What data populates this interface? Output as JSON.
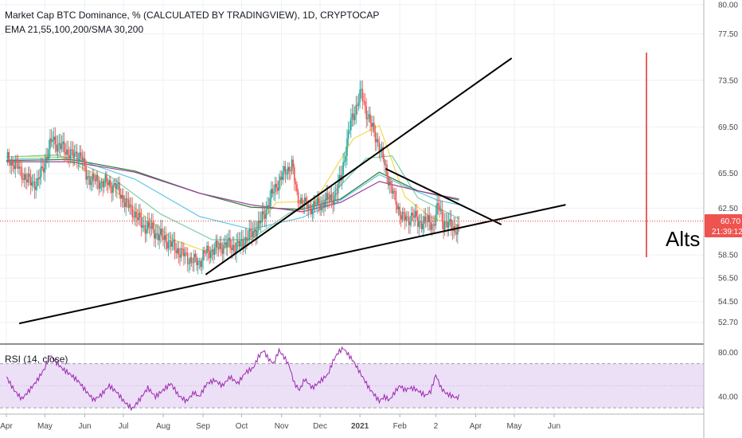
{
  "header": {
    "title": "Market Cap BTC Dominance, % (CALCULATED BY TRADINGVIEW), 1D, CRYPTOCAP",
    "indicators": "EMA 21,55,100,200/SMA 30,200"
  },
  "rsi_pane": {
    "label": "RSI (14, close)"
  },
  "price_badge": {
    "value": "60.70",
    "countdown": "21:39:12"
  },
  "annotation": {
    "text": "Alts l"
  },
  "chart_data": {
    "type": "candlestick",
    "price_axis": {
      "range": [
        50.9,
        80.4
      ],
      "ticks": [
        "80.00",
        "77.50",
        "73.50",
        "69.50",
        "65.50",
        "62.50",
        "60.70",
        "58.50",
        "56.50",
        "54.50",
        "52.70"
      ]
    },
    "rsi_axis": {
      "range": [
        25,
        87
      ],
      "ticks": [
        "80.00",
        "40.00"
      ],
      "band": [
        30,
        70
      ]
    },
    "time_axis": {
      "ticks": [
        {
          "label": "Apr",
          "d": 0
        },
        {
          "label": "May",
          "d": 30
        },
        {
          "label": "Jun",
          "d": 61
        },
        {
          "label": "Jul",
          "d": 91
        },
        {
          "label": "Aug",
          "d": 122
        },
        {
          "label": "Sep",
          "d": 153
        },
        {
          "label": "Oct",
          "d": 183
        },
        {
          "label": "Nov",
          "d": 214
        },
        {
          "label": "Dec",
          "d": 244
        },
        {
          "label": "2021",
          "d": 275
        },
        {
          "label": "Feb",
          "d": 306
        },
        {
          "label": "2",
          "d": 334
        },
        {
          "label": "Apr",
          "d": 365
        },
        {
          "label": "May",
          "d": 395
        },
        {
          "label": "Jun",
          "d": 426
        }
      ]
    },
    "last_price": 60.7,
    "close_series": [
      [
        0,
        66.8
      ],
      [
        8,
        66.2
      ],
      [
        16,
        64.9
      ],
      [
        24,
        64.6
      ],
      [
        30,
        66.5
      ],
      [
        36,
        68.5
      ],
      [
        40,
        67.9
      ],
      [
        46,
        67.5
      ],
      [
        52,
        67.0
      ],
      [
        58,
        67.1
      ],
      [
        62,
        65.3
      ],
      [
        70,
        64.8
      ],
      [
        78,
        64.7
      ],
      [
        86,
        64.3
      ],
      [
        92,
        63.1
      ],
      [
        100,
        62.0
      ],
      [
        106,
        61.0
      ],
      [
        112,
        60.8
      ],
      [
        118,
        60.2
      ],
      [
        124,
        59.8
      ],
      [
        132,
        59.0
      ],
      [
        138,
        58.5
      ],
      [
        144,
        58.0
      ],
      [
        150,
        57.9
      ],
      [
        154,
        58.6
      ],
      [
        160,
        58.9
      ],
      [
        166,
        59.2
      ],
      [
        172,
        59.4
      ],
      [
        178,
        59.1
      ],
      [
        184,
        59.6
      ],
      [
        190,
        60.2
      ],
      [
        196,
        61.0
      ],
      [
        200,
        61.9
      ],
      [
        204,
        63.0
      ],
      [
        210,
        64.5
      ],
      [
        216,
        65.5
      ],
      [
        222,
        66.3
      ],
      [
        226,
        63.6
      ],
      [
        232,
        62.8
      ],
      [
        238,
        62.6
      ],
      [
        244,
        62.9
      ],
      [
        250,
        63.2
      ],
      [
        256,
        63.6
      ],
      [
        260,
        65.1
      ],
      [
        264,
        67.5
      ],
      [
        268,
        70.0
      ],
      [
        272,
        71.2
      ],
      [
        276,
        72.4
      ],
      [
        280,
        70.8
      ],
      [
        284,
        69.5
      ],
      [
        288,
        68.5
      ],
      [
        292,
        67.1
      ],
      [
        296,
        65.5
      ],
      [
        300,
        64.0
      ],
      [
        304,
        62.7
      ],
      [
        308,
        61.8
      ],
      [
        312,
        61.4
      ],
      [
        316,
        62.1
      ],
      [
        320,
        61.2
      ],
      [
        324,
        61.4
      ],
      [
        328,
        61.3
      ],
      [
        332,
        61.1
      ],
      [
        336,
        62.7
      ],
      [
        340,
        61.3
      ],
      [
        344,
        61.0
      ],
      [
        348,
        60.8
      ],
      [
        352,
        60.7
      ]
    ],
    "moving_averages": [
      {
        "name": "EMA 21",
        "color": "#f2d94a",
        "points": [
          [
            0,
            66.9
          ],
          [
            40,
            67.0
          ],
          [
            70,
            65.4
          ],
          [
            100,
            62.5
          ],
          [
            130,
            59.8
          ],
          [
            155,
            58.8
          ],
          [
            185,
            59.4
          ],
          [
            210,
            63.0
          ],
          [
            240,
            63.1
          ],
          [
            270,
            68.5
          ],
          [
            290,
            69.6
          ],
          [
            310,
            63.5
          ],
          [
            330,
            61.7
          ],
          [
            352,
            61.0
          ]
        ]
      },
      {
        "name": "EMA 55",
        "color": "#7dcfa8",
        "points": [
          [
            0,
            66.9
          ],
          [
            40,
            67.1
          ],
          [
            80,
            65.3
          ],
          [
            120,
            62.0
          ],
          [
            160,
            59.8
          ],
          [
            190,
            59.8
          ],
          [
            220,
            62.1
          ],
          [
            250,
            63.3
          ],
          [
            280,
            66.8
          ],
          [
            300,
            67.0
          ],
          [
            320,
            63.4
          ],
          [
            340,
            62.3
          ],
          [
            352,
            61.6
          ]
        ]
      },
      {
        "name": "EMA 100",
        "color": "#5ec8e5",
        "points": [
          [
            0,
            66.7
          ],
          [
            50,
            66.9
          ],
          [
            100,
            65.0
          ],
          [
            150,
            61.8
          ],
          [
            190,
            60.7
          ],
          [
            230,
            61.7
          ],
          [
            260,
            63.2
          ],
          [
            290,
            65.4
          ],
          [
            310,
            64.4
          ],
          [
            335,
            63.2
          ],
          [
            352,
            62.8
          ]
        ]
      },
      {
        "name": "EMA 200",
        "color": "#2e7d32",
        "points": [
          [
            0,
            66.6
          ],
          [
            50,
            66.7
          ],
          [
            100,
            65.7
          ],
          [
            150,
            63.8
          ],
          [
            190,
            62.6
          ],
          [
            230,
            62.4
          ],
          [
            260,
            63.3
          ],
          [
            290,
            65.6
          ],
          [
            320,
            64.0
          ],
          [
            352,
            63.2
          ]
        ]
      },
      {
        "name": "SMA 200",
        "color": "#9c3f9c",
        "points": [
          [
            0,
            66.5
          ],
          [
            50,
            66.5
          ],
          [
            100,
            65.6
          ],
          [
            150,
            63.8
          ],
          [
            190,
            62.8
          ],
          [
            230,
            62.2
          ],
          [
            260,
            63.0
          ],
          [
            290,
            64.8
          ],
          [
            320,
            64.0
          ],
          [
            352,
            63.3
          ]
        ]
      }
    ],
    "trendlines": [
      {
        "name": "lower-support",
        "from": [
          10,
          52.6
        ],
        "to": [
          435,
          62.8
        ]
      },
      {
        "name": "inner-rising",
        "from": [
          155,
          56.8
        ],
        "to": [
          393,
          75.4
        ]
      },
      {
        "name": "falling-wedge",
        "from": [
          295,
          65.9
        ],
        "to": [
          385,
          61.1
        ]
      }
    ],
    "rsi_series": [
      [
        0,
        58
      ],
      [
        6,
        46
      ],
      [
        12,
        38
      ],
      [
        18,
        46
      ],
      [
        24,
        55
      ],
      [
        30,
        66
      ],
      [
        34,
        78
      ],
      [
        38,
        72
      ],
      [
        44,
        65
      ],
      [
        50,
        60
      ],
      [
        56,
        54
      ],
      [
        62,
        45
      ],
      [
        68,
        37
      ],
      [
        74,
        42
      ],
      [
        80,
        50
      ],
      [
        86,
        44
      ],
      [
        92,
        35
      ],
      [
        98,
        29
      ],
      [
        104,
        38
      ],
      [
        110,
        48
      ],
      [
        116,
        40
      ],
      [
        122,
        46
      ],
      [
        128,
        52
      ],
      [
        134,
        41
      ],
      [
        140,
        36
      ],
      [
        146,
        44
      ],
      [
        150,
        40
      ],
      [
        156,
        52
      ],
      [
        162,
        55
      ],
      [
        168,
        50
      ],
      [
        174,
        58
      ],
      [
        180,
        52
      ],
      [
        186,
        62
      ],
      [
        192,
        66
      ],
      [
        196,
        76
      ],
      [
        200,
        82
      ],
      [
        204,
        74
      ],
      [
        208,
        70
      ],
      [
        212,
        82
      ],
      [
        216,
        76
      ],
      [
        220,
        68
      ],
      [
        224,
        52
      ],
      [
        228,
        46
      ],
      [
        232,
        56
      ],
      [
        238,
        48
      ],
      [
        244,
        54
      ],
      [
        250,
        60
      ],
      [
        254,
        72
      ],
      [
        258,
        80
      ],
      [
        262,
        84
      ],
      [
        266,
        78
      ],
      [
        270,
        72
      ],
      [
        274,
        64
      ],
      [
        278,
        56
      ],
      [
        282,
        48
      ],
      [
        286,
        42
      ],
      [
        290,
        36
      ],
      [
        294,
        40
      ],
      [
        298,
        37
      ],
      [
        302,
        44
      ],
      [
        306,
        50
      ],
      [
        310,
        46
      ],
      [
        314,
        48
      ],
      [
        318,
        47
      ],
      [
        322,
        44
      ],
      [
        326,
        41
      ],
      [
        330,
        45
      ],
      [
        334,
        60
      ],
      [
        338,
        48
      ],
      [
        342,
        43
      ],
      [
        346,
        41
      ],
      [
        350,
        39
      ],
      [
        352,
        40
      ]
    ]
  }
}
